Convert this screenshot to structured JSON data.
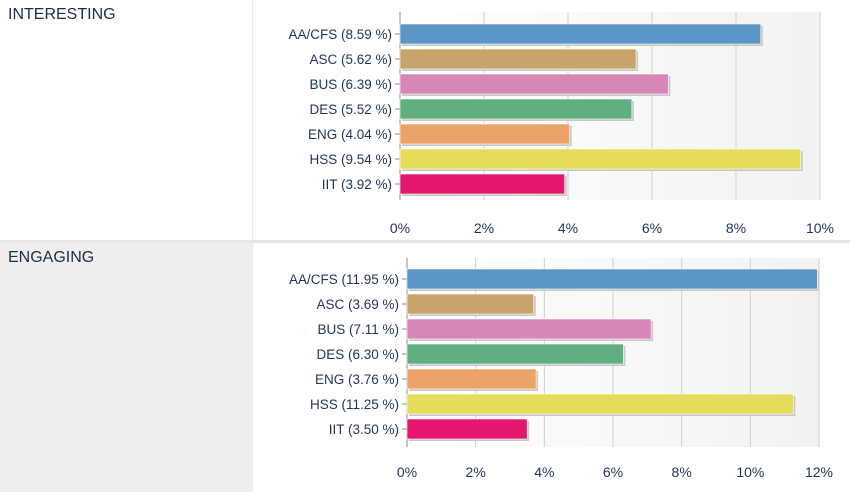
{
  "chart_data": [
    {
      "type": "bar",
      "orientation": "horizontal",
      "title": "INTERESTING",
      "categories": [
        "AA/CFS (8.59 %)",
        "ASC (5.62 %)",
        "BUS (6.39 %)",
        "DES (5.52 %)",
        "ENG (4.04 %)",
        "HSS (9.54 %)",
        "IIT (3.92 %)"
      ],
      "values": [
        8.59,
        5.62,
        6.39,
        5.52,
        4.04,
        9.54,
        3.92
      ],
      "colors": [
        "#5b96c7",
        "#c9a46a",
        "#d886b6",
        "#5faf80",
        "#eba366",
        "#e5dc5a",
        "#e5166e"
      ],
      "xlim": [
        0,
        10
      ],
      "xticks": [
        "0%",
        "2%",
        "4%",
        "6%",
        "8%",
        "10%"
      ],
      "grid": true
    },
    {
      "type": "bar",
      "orientation": "horizontal",
      "title": "ENGAGING",
      "categories": [
        "AA/CFS (11.95 %)",
        "ASC (3.69 %)",
        "BUS (7.11 %)",
        "DES (6.30 %)",
        "ENG (3.76 %)",
        "HSS (11.25 %)",
        "IIT (3.50 %)"
      ],
      "values": [
        11.95,
        3.69,
        7.11,
        6.3,
        3.76,
        11.25,
        3.5
      ],
      "colors": [
        "#5b96c7",
        "#c9a46a",
        "#d886b6",
        "#5faf80",
        "#eba366",
        "#e5dc5a",
        "#e5166e"
      ],
      "xlim": [
        0,
        12
      ],
      "xticks": [
        "0%",
        "2%",
        "4%",
        "6%",
        "8%",
        "10%",
        "12%"
      ],
      "grid": true
    }
  ]
}
